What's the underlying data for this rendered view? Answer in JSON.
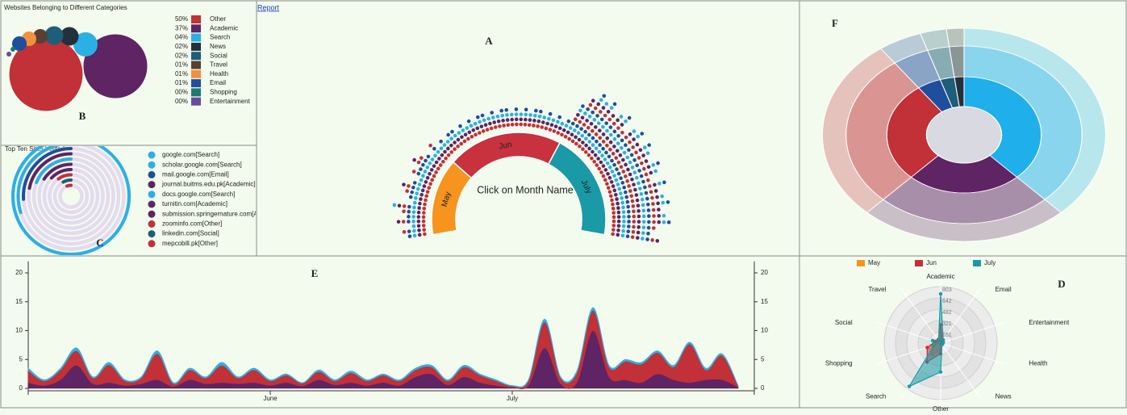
{
  "report_link": "Report",
  "chart_data": [
    {
      "type": "bubble",
      "label": "B",
      "title": "Websites Belonging to Different Categories",
      "categories": [
        "Other",
        "Academic",
        "Search",
        "News",
        "Social",
        "Travel",
        "Health",
        "Email",
        "Shopping",
        "Entertainment"
      ],
      "values": [
        50,
        37,
        4,
        2,
        2,
        1,
        1,
        1,
        0,
        0
      ],
      "value_labels": [
        "50%",
        "37%",
        "04%",
        "02%",
        "02%",
        "01%",
        "01%",
        "01%",
        "00%",
        "00%"
      ],
      "colors": [
        "#c23038",
        "#5e2463",
        "#2ab0e4",
        "#22313b",
        "#1d5e7a",
        "#5a4030",
        "#f2913d",
        "#1f4e9c",
        "#1e7a6e",
        "#6b49a0"
      ]
    },
    {
      "type": "radial_bar",
      "label": "C",
      "title": "Top Ten Sites Visited",
      "categories": [
        "google.com[Search]",
        "scholar.google.com[Search]",
        "mail.google.com[Email]",
        "journal.buitms.edu.pk[Academic]",
        "docs.google.com[Search]",
        "turnitin.com[Academic]",
        "submission.springernature.com[Academic]",
        "zoominfo.com[Other]",
        "linkedin.com[Social]",
        "mepcobill.pk[Other]"
      ],
      "values": [
        95,
        30,
        26,
        22,
        19,
        16,
        13,
        10,
        8,
        6
      ],
      "xlim": [
        0,
        100
      ],
      "colors": [
        "#2ab0e4",
        "#2ab0e4",
        "#1f4e9c",
        "#5e2463",
        "#2ab0e4",
        "#5e2463",
        "#5e2463",
        "#c23038",
        "#1d5e7a",
        "#c23038"
      ]
    },
    {
      "type": "month_wheel",
      "label": "A",
      "prompt": "Click on Month Name",
      "dot_colors": [
        "#c23038",
        "#5e2463",
        "#2ab0e4",
        "#1f4e9c"
      ],
      "months": [
        {
          "name": "May",
          "color": "#f7941d",
          "dot_counts": [
            4,
            5,
            3,
            6,
            4,
            5,
            7,
            3,
            4,
            5,
            6,
            4,
            3,
            5,
            4,
            6,
            5,
            4,
            3,
            5
          ]
        },
        {
          "name": "Jun",
          "color": "#c8313e",
          "dot_counts": [
            3,
            4,
            3,
            4,
            4,
            3,
            4,
            3,
            4,
            3,
            4,
            4,
            3,
            4,
            3,
            4,
            4,
            3,
            4,
            3,
            4,
            3,
            4,
            4,
            3,
            4,
            3,
            4,
            3,
            4
          ]
        },
        {
          "name": "July",
          "color": "#1a9aa6",
          "dot_counts": [
            8,
            10,
            12,
            11,
            12,
            10,
            11,
            12,
            9,
            11,
            12,
            10,
            12,
            11,
            10,
            12,
            11,
            9,
            12,
            10,
            11,
            12,
            10,
            11,
            12,
            9,
            8,
            10
          ]
        }
      ]
    },
    {
      "type": "sunburst",
      "label": "F",
      "values": [
        38,
        24,
        28,
        5,
        3,
        2
      ],
      "colors": [
        "#1fb0ec",
        "#5e2463",
        "#c23038",
        "#1f4e9c",
        "#1d5e7a",
        "#22313b"
      ]
    },
    {
      "type": "area",
      "label": "E",
      "stacked": true,
      "x": [
        0,
        2,
        4,
        6,
        8,
        10,
        12,
        14,
        16,
        18,
        20,
        22,
        24,
        26,
        28,
        30,
        32,
        34,
        36,
        38,
        40,
        42,
        44,
        46,
        48,
        50,
        52,
        54,
        56,
        58,
        60,
        62,
        64,
        66,
        68,
        70,
        72,
        74,
        76,
        78,
        80,
        82,
        84,
        86,
        88
      ],
      "xlim": [
        0,
        90
      ],
      "xticks": [
        {
          "value": 30,
          "label": "June"
        },
        {
          "value": 60,
          "label": "July"
        }
      ],
      "ylim": [
        0,
        22
      ],
      "yticks": [
        0,
        5,
        10,
        15,
        20
      ],
      "series": [
        {
          "name": "Academic",
          "color": "#5e2463",
          "values": [
            1,
            0.5,
            1.5,
            4,
            0.8,
            1,
            0.5,
            0.8,
            1.5,
            0.3,
            1.5,
            0.8,
            1,
            0.8,
            1,
            0.5,
            1,
            0.4,
            1.5,
            0.6,
            1,
            0.5,
            1,
            0.5,
            2,
            2.5,
            0.6,
            2,
            1,
            0.5,
            0.2,
            0.5,
            7,
            0.8,
            1,
            10,
            2,
            1.5,
            1,
            2.5,
            1.5,
            1,
            1.5,
            1.5,
            0.2
          ]
        },
        {
          "name": "Other",
          "color": "#c23038",
          "values": [
            2.1,
            0.8,
            1.7,
            2.5,
            1,
            3.1,
            0.8,
            1,
            4.5,
            0.5,
            1.7,
            1,
            3,
            1,
            2.2,
            0.8,
            1.3,
            0.5,
            1.4,
            0.7,
            1.7,
            0.8,
            1.3,
            0.8,
            1.2,
            1.2,
            0.7,
            1.7,
            1.3,
            0.8,
            0.2,
            0.8,
            4.5,
            1,
            1.7,
            3.5,
            1.7,
            3.2,
            3.2,
            3.7,
            2.2,
            6.7,
            1.7,
            4.2,
            0.2
          ]
        },
        {
          "name": "Search",
          "color": "#2ab0e4",
          "values": [
            0.4,
            0.2,
            0.3,
            0.5,
            0.2,
            0.4,
            0.2,
            0.2,
            0.5,
            0.2,
            0.3,
            0.2,
            0.5,
            0.2,
            0.3,
            0.2,
            0.2,
            0.1,
            0.3,
            0.2,
            0.3,
            0.2,
            0.2,
            0.2,
            0.3,
            0.3,
            0.2,
            0.3,
            0.2,
            0.2,
            0.1,
            0.2,
            0.5,
            0.2,
            0.3,
            0.5,
            0.3,
            0.3,
            0.3,
            0.3,
            0.3,
            0.3,
            0.3,
            0.3,
            0.1
          ]
        }
      ]
    },
    {
      "type": "radar",
      "label": "D",
      "categories": [
        "Academic",
        "Email",
        "Entertainment",
        "Health",
        "News",
        "Other",
        "Search",
        "Shopping",
        "Social",
        "Travel"
      ],
      "ylim": [
        0,
        803
      ],
      "yticks": [
        161,
        321,
        482,
        642,
        803
      ],
      "series": [
        {
          "name": "May",
          "color": "#f7941d",
          "values": [
            150,
            20,
            20,
            10,
            10,
            100,
            200,
            120,
            40,
            30
          ]
        },
        {
          "name": "Jun",
          "color": "#c23038",
          "values": [
            260,
            40,
            30,
            20,
            20,
            150,
            330,
            200,
            80,
            60
          ]
        },
        {
          "name": "July",
          "color": "#1a9aa6",
          "values": [
            700,
            60,
            40,
            30,
            30,
            410,
            760,
            100,
            120,
            50
          ]
        }
      ]
    }
  ]
}
